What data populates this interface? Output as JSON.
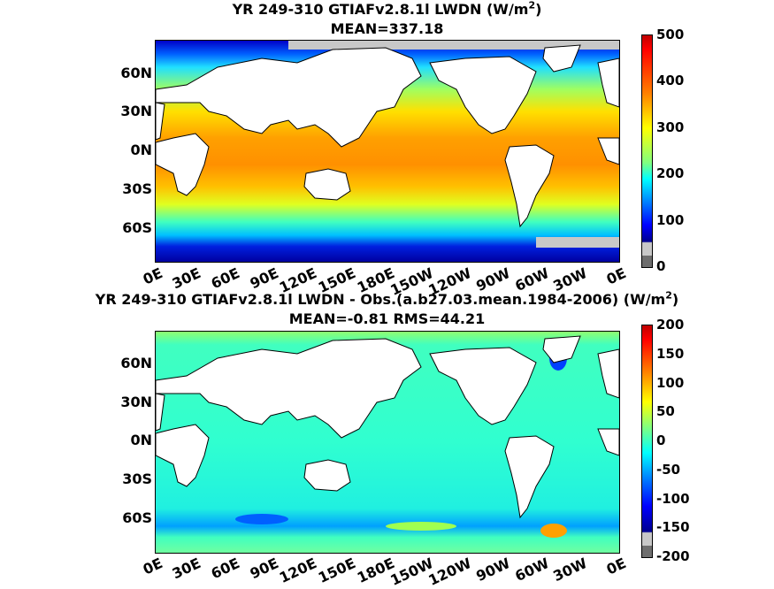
{
  "panels": [
    {
      "title_line1": "YR 249-310 GTIAFv2.8.1l LWDN (W/m",
      "title_sup": "2",
      "title_close": ")",
      "title_line2": "MEAN=337.18",
      "lat_labels": [
        "60N",
        "30N",
        "0N",
        "30S",
        "60S"
      ],
      "lon_labels": [
        "0E",
        "30E",
        "60E",
        "90E",
        "120E",
        "150E",
        "180E",
        "150W",
        "120W",
        "90W",
        "60W",
        "30W",
        "0E"
      ],
      "colorbar_ticks": [
        "500",
        "400",
        "300",
        "200",
        "100",
        "0"
      ]
    },
    {
      "title_line1": "YR 249-310 GTIAFv2.8.1l LWDN - Obs.(a.b27.03.mean.1984-2006) (W/m",
      "title_sup": "2",
      "title_close": ")",
      "title_line2": "MEAN=-0.81 RMS=44.21",
      "lat_labels": [
        "60N",
        "30N",
        "0N",
        "30S",
        "60S"
      ],
      "lon_labels": [
        "0E",
        "30E",
        "60E",
        "90E",
        "120E",
        "150E",
        "180E",
        "150W",
        "120W",
        "90W",
        "60W",
        "30W",
        "0E"
      ],
      "colorbar_ticks": [
        "200",
        "150",
        "100",
        "50",
        "0",
        "-50",
        "-100",
        "-150",
        "-200"
      ]
    }
  ],
  "colors": {
    "jet": [
      "#00008f",
      "#0000ff",
      "#0080ff",
      "#00ffff",
      "#80ff80",
      "#ffff00",
      "#ff8000",
      "#ff0000",
      "#800000"
    ],
    "land": "#ffffff",
    "missing": "#c8c8c8",
    "colorbar_bottom_missing": "#6e6e6e"
  }
}
